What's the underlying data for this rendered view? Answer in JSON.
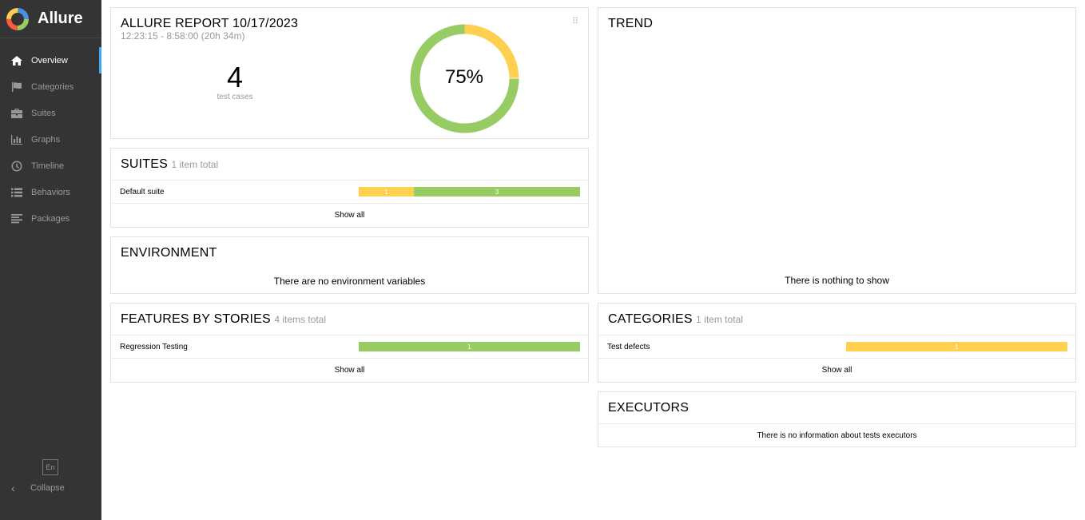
{
  "brand": {
    "name": "Allure"
  },
  "nav": {
    "items": [
      {
        "label": "Overview",
        "icon": "home-icon"
      },
      {
        "label": "Categories",
        "icon": "flag-icon"
      },
      {
        "label": "Suites",
        "icon": "briefcase-icon"
      },
      {
        "label": "Graphs",
        "icon": "bar-chart-icon"
      },
      {
        "label": "Timeline",
        "icon": "clock-icon"
      },
      {
        "label": "Behaviors",
        "icon": "list-icon"
      },
      {
        "label": "Packages",
        "icon": "align-left-icon"
      }
    ],
    "language": "En",
    "collapse": "Collapse"
  },
  "summary": {
    "title": "ALLURE REPORT 10/17/2023",
    "time": "12:23:15 - 8:58:00 (20h 34m)",
    "count": "4",
    "count_label": "test cases",
    "percent": "75%",
    "donut": {
      "passed": 3,
      "broken": 1
    }
  },
  "suites": {
    "title": "SUITES",
    "total": "1 item total",
    "rows": [
      {
        "name": "Default suite",
        "broken": "1",
        "passed": "3"
      }
    ],
    "show_all": "Show all"
  },
  "environment": {
    "title": "ENVIRONMENT",
    "message": "There are no environment variables"
  },
  "features": {
    "title": "FEATURES BY STORIES",
    "total": "4 items total",
    "rows": [
      {
        "name": "Regression Testing",
        "passed": "1"
      }
    ],
    "show_all": "Show all"
  },
  "trend": {
    "title": "TREND",
    "message": "There is nothing to show"
  },
  "categories": {
    "title": "CATEGORIES",
    "total": "1 item total",
    "rows": [
      {
        "name": "Test defects",
        "broken": "1"
      }
    ],
    "show_all": "Show all"
  },
  "executors": {
    "title": "EXECUTORS",
    "message": "There is no information about tests executors"
  },
  "colors": {
    "passed": "#97cc64",
    "broken": "#ffd050",
    "sidebar": "#343434",
    "accent": "#3fa9f5"
  }
}
